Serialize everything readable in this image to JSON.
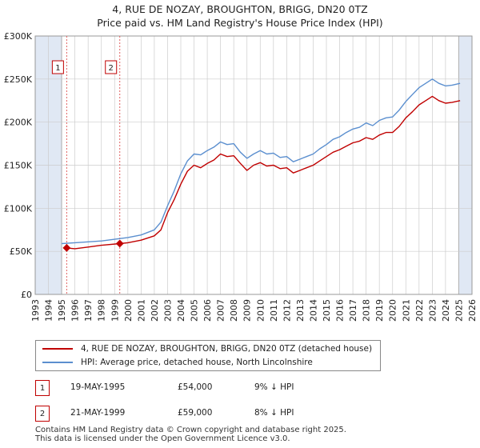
{
  "title": {
    "line1": "4, RUE DE NOZAY, BROUGHTON, BRIGG, DN20 0TZ",
    "line2": "Price paid vs. HM Land Registry's House Price Index (HPI)"
  },
  "colors": {
    "price_paid": "#c00000",
    "hpi": "#5b8fcf",
    "shade": "#dde6f3",
    "grid": "#cccccc",
    "marker_line": "#e06060"
  },
  "legend": {
    "price_paid_label": "4, RUE DE NOZAY, BROUGHTON, BRIGG, DN20 0TZ (detached house)",
    "hpi_label": "HPI: Average price, detached house, North Lincolnshire"
  },
  "transactions": [
    {
      "id": "1",
      "date": "19-MAY-1995",
      "price": "£54,000",
      "delta": "9% ↓ HPI"
    },
    {
      "id": "2",
      "date": "21-MAY-1999",
      "price": "£59,000",
      "delta": "8% ↓ HPI"
    }
  ],
  "footer": {
    "line1": "Contains HM Land Registry data © Crown copyright and database right 2025.",
    "line2": "This data is licensed under the Open Government Licence v3.0."
  },
  "chart_data": {
    "type": "line",
    "title": "4, RUE DE NOZAY, BROUGHTON, BRIGG, DN20 0TZ",
    "subtitle": "Price paid vs. HM Land Registry's House Price Index (HPI)",
    "xlabel": "",
    "ylabel": "",
    "xlim": [
      1993,
      2026
    ],
    "ylim": [
      0,
      300000
    ],
    "x_ticks": [
      1993,
      1994,
      1995,
      1996,
      1997,
      1998,
      1999,
      2000,
      2001,
      2002,
      2003,
      2004,
      2005,
      2006,
      2007,
      2008,
      2009,
      2010,
      2011,
      2012,
      2013,
      2014,
      2015,
      2016,
      2017,
      2018,
      2019,
      2020,
      2021,
      2022,
      2023,
      2024,
      2025,
      2026
    ],
    "y_ticks": [
      {
        "value": 0,
        "label": "£0"
      },
      {
        "value": 50000,
        "label": "£50K"
      },
      {
        "value": 100000,
        "label": "£100K"
      },
      {
        "value": 150000,
        "label": "£150K"
      },
      {
        "value": 200000,
        "label": "£200K"
      },
      {
        "value": 250000,
        "label": "£250K"
      },
      {
        "value": 300000,
        "label": "£300K"
      }
    ],
    "grid": true,
    "shaded_ranges": [
      [
        1993,
        1995.0
      ],
      [
        2025.0,
        2026
      ]
    ],
    "sale_markers": [
      {
        "label": "1",
        "x": 1995.38,
        "y": 54000
      },
      {
        "label": "2",
        "x": 1999.39,
        "y": 59000
      }
    ],
    "series": [
      {
        "name": "4, RUE DE NOZAY, BROUGHTON, BRIGG, DN20 0TZ (detached house)",
        "x": [
          1995.38,
          1996,
          1997,
          1998,
          1999.39,
          2000,
          2001,
          2002,
          2002.5,
          2003,
          2003.5,
          2004,
          2004.5,
          2005,
          2005.5,
          2006,
          2006.5,
          2007,
          2007.5,
          2008,
          2008.5,
          2009,
          2009.5,
          2010,
          2010.5,
          2011,
          2011.5,
          2012,
          2012.5,
          2013,
          2013.5,
          2014,
          2014.5,
          2015,
          2015.5,
          2016,
          2016.5,
          2017,
          2017.5,
          2018,
          2018.5,
          2019,
          2019.5,
          2020,
          2020.5,
          2021,
          2021.5,
          2022,
          2022.5,
          2023,
          2023.5,
          2024,
          2024.5,
          2025.1
        ],
        "values": [
          54000,
          53000,
          55000,
          57000,
          59000,
          60000,
          63000,
          68000,
          75000,
          95000,
          110000,
          128000,
          143000,
          150000,
          147000,
          152000,
          156000,
          163000,
          160000,
          161000,
          152000,
          144000,
          150000,
          153000,
          149000,
          150000,
          146000,
          147000,
          141000,
          144000,
          147000,
          150000,
          155000,
          160000,
          165000,
          168000,
          172000,
          176000,
          178000,
          182000,
          180000,
          185000,
          188000,
          188000,
          195000,
          205000,
          212000,
          220000,
          225000,
          230000,
          225000,
          222000,
          223000,
          225000
        ]
      },
      {
        "name": "HPI: Average price, detached house, North Lincolnshire",
        "x": [
          1995,
          1996,
          1997,
          1998,
          1999,
          2000,
          2001,
          2002,
          2002.5,
          2003,
          2003.5,
          2004,
          2004.5,
          2005,
          2005.5,
          2006,
          2006.5,
          2007,
          2007.5,
          2008,
          2008.5,
          2009,
          2009.5,
          2010,
          2010.5,
          2011,
          2011.5,
          2012,
          2012.5,
          2013,
          2013.5,
          2014,
          2014.5,
          2015,
          2015.5,
          2016,
          2016.5,
          2017,
          2017.5,
          2018,
          2018.5,
          2019,
          2019.5,
          2020,
          2020.5,
          2021,
          2021.5,
          2022,
          2022.5,
          2023,
          2023.5,
          2024,
          2024.5,
          2025.1
        ],
        "values": [
          59000,
          60000,
          61000,
          62000,
          64000,
          66000,
          69000,
          75000,
          84000,
          103000,
          120000,
          140000,
          155000,
          163000,
          162000,
          167000,
          171000,
          177000,
          174000,
          175000,
          165000,
          158000,
          163000,
          167000,
          163000,
          164000,
          159000,
          160000,
          154000,
          157000,
          160000,
          163000,
          169000,
          174000,
          180000,
          183000,
          188000,
          192000,
          194000,
          199000,
          196000,
          202000,
          205000,
          206000,
          214000,
          224000,
          232000,
          240000,
          245000,
          250000,
          245000,
          242000,
          243000,
          245000
        ]
      }
    ]
  }
}
